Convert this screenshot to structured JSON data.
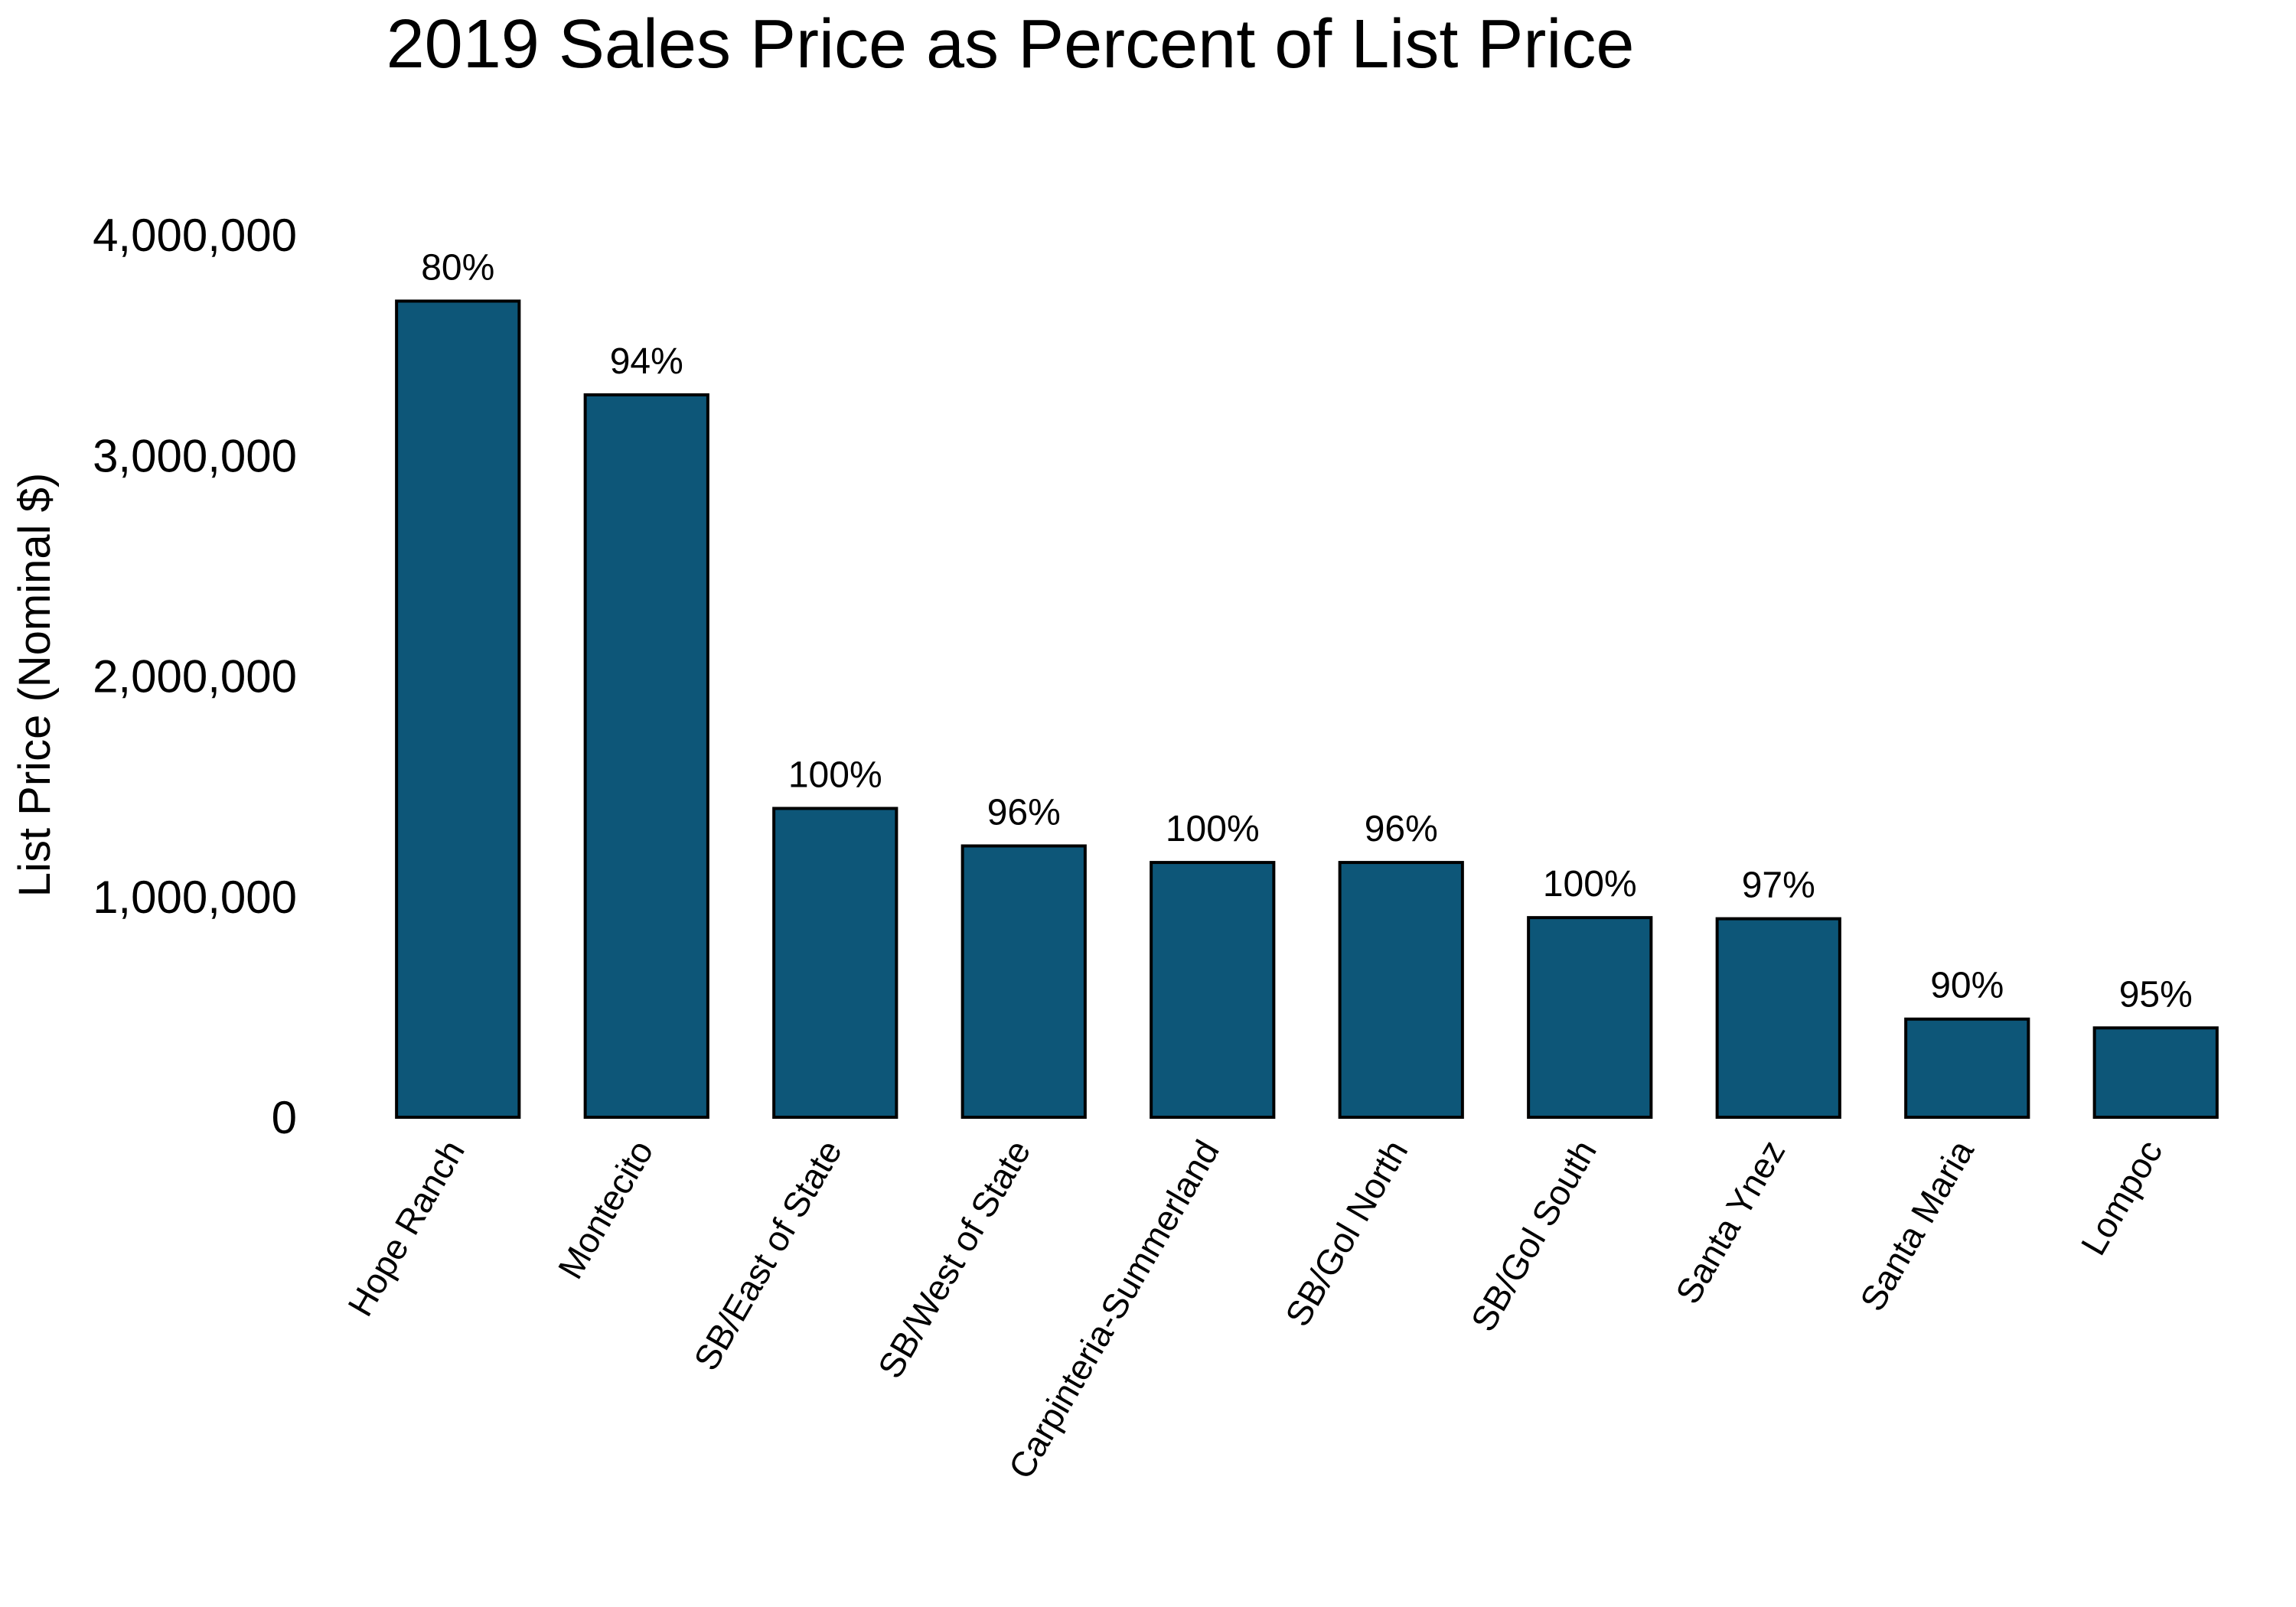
{
  "chart_data": {
    "type": "bar",
    "title": "2019 Sales Price as Percent of List Price",
    "xlabel": "",
    "ylabel": "List Price (Nominal $)",
    "ylim": [
      0,
      4000000
    ],
    "yticks": [
      0,
      1000000,
      2000000,
      3000000,
      4000000
    ],
    "ytick_labels": [
      "0",
      "1,000,000",
      "2,000,000",
      "3,000,000",
      "4,000,000"
    ],
    "grid": false,
    "legend": "none",
    "bar_color": "#0d5678",
    "bar_edge_color": "#000000",
    "categories": [
      "Hope Ranch",
      "Montecito",
      "SB/East of State",
      "SB/West of State",
      "Carpinteria-Summerland",
      "SB/Gol North",
      "SB/Gol South",
      "Santa Ynez",
      "Santa Maria",
      "Lompoc"
    ],
    "values": [
      3700000,
      3275000,
      1400000,
      1230000,
      1155000,
      1155000,
      905000,
      900000,
      445000,
      405000
    ],
    "data_labels": [
      "80%",
      "94%",
      "100%",
      "96%",
      "100%",
      "96%",
      "100%",
      "97%",
      "90%",
      "95%"
    ]
  }
}
